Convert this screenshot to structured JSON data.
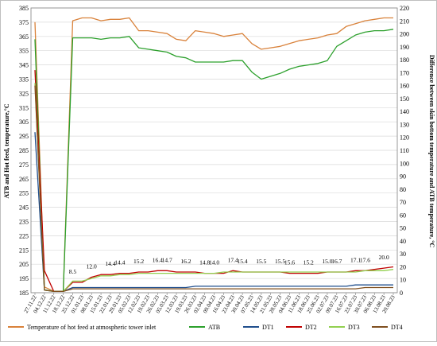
{
  "chart_data": {
    "type": "line",
    "title": "",
    "ylabel_left": "ATB and Hot feed, temperature,°C",
    "ylabel_right": "Difference between skin bottom temperature and ATB temperature, °C",
    "ylim_left": [
      185,
      385
    ],
    "ylim_right": [
      0,
      220
    ],
    "yticks_left": [
      "185",
      "195",
      "205",
      "215",
      "225",
      "235",
      "245",
      "255",
      "265",
      "275",
      "285",
      "295",
      "305",
      "315",
      "325",
      "335",
      "345",
      "355",
      "365",
      "375",
      "385"
    ],
    "yticks_right": [
      "0",
      "10",
      "20",
      "30",
      "40",
      "50",
      "60",
      "70",
      "80",
      "90",
      "100",
      "110",
      "120",
      "130",
      "140",
      "150",
      "160",
      "170",
      "180",
      "190",
      "200",
      "210",
      "220"
    ],
    "categories": [
      "27.11.22",
      "04.12.22",
      "11.12.22",
      "18.12.22",
      "25.12.22",
      "01.01.23",
      "08.01.23",
      "15.01.23",
      "22.01.23",
      "29.01.23",
      "05.02.23",
      "12.02.23",
      "19.02.23",
      "26.02.23",
      "05.03.23",
      "12.03.23",
      "19.03.23",
      "26.03.23",
      "02.04.23",
      "09.04.23",
      "16.04.23",
      "23.04.23",
      "30.04.23",
      "07.05.23",
      "14.05.23",
      "21.05.23",
      "28.05.23",
      "04.06.23",
      "11.06.23",
      "18.06.23",
      "25.06.23",
      "02.07.23",
      "09.07.23",
      "16.07.23",
      "23.07.23",
      "30.07.23",
      "06.08.23",
      "13.08.23",
      "20.08.23"
    ],
    "annotations": [
      "8.5",
      "12.0",
      "14.4",
      "14.4",
      "15.2",
      "16.4",
      "14.7",
      "16.2",
      "14.8",
      "14.0",
      "17.4",
      "15.4",
      "15.5",
      "15.5",
      "15.6",
      "15.2",
      "15.0",
      "16.7",
      "17.1",
      "17.6",
      "20.0"
    ],
    "series": [
      {
        "name": "Temperature of hot feed at atmospheric tower inlet",
        "axis": "left",
        "color": "#d9823b",
        "values": [
          375,
          189,
          186,
          186,
          376,
          378,
          378,
          376,
          377,
          377,
          378,
          369,
          369,
          368,
          367,
          363,
          362,
          369,
          368,
          367,
          365,
          366,
          367,
          360,
          356,
          357,
          358,
          360,
          362,
          363,
          364,
          366,
          367,
          372,
          374,
          376,
          377,
          378,
          378
        ]
      },
      {
        "name": "ATB",
        "axis": "left",
        "color": "#2ca02c",
        "values": [
          363,
          187,
          186,
          186,
          364,
          364,
          364,
          363,
          364,
          364,
          365,
          357,
          356,
          355,
          354,
          351,
          350,
          347,
          347,
          347,
          347,
          348,
          348,
          340,
          335,
          337,
          339,
          342,
          344,
          345,
          346,
          348,
          358,
          362,
          366,
          368,
          369,
          369,
          370
        ]
      },
      {
        "name": "DT1",
        "axis": "right",
        "color": "#1f4e8c",
        "values": [
          124,
          2,
          1,
          1,
          4,
          4,
          4,
          4,
          4,
          4,
          4,
          4,
          4,
          4,
          4,
          4,
          4,
          5,
          5,
          5,
          5,
          5,
          5,
          5,
          5,
          5,
          5,
          5,
          5,
          5,
          5,
          5,
          5,
          5,
          6,
          6,
          6,
          6,
          6
        ]
      },
      {
        "name": "DT2",
        "axis": "right",
        "color": "#c00000",
        "values": [
          172,
          17,
          1,
          1,
          8,
          8,
          12,
          14,
          14,
          15,
          15,
          16,
          16,
          17,
          17,
          16,
          16,
          16,
          15,
          15,
          15,
          17,
          16,
          16,
          16,
          16,
          16,
          15,
          15,
          15,
          15,
          16,
          16,
          16,
          17,
          17,
          18,
          19,
          20
        ]
      },
      {
        "name": "DT3",
        "axis": "right",
        "color": "#92d050",
        "values": [
          162,
          2,
          1,
          1,
          9,
          9,
          11,
          13,
          13,
          14,
          14,
          15,
          15,
          15,
          15,
          15,
          15,
          15,
          15,
          15,
          16,
          16,
          16,
          16,
          16,
          16,
          16,
          16,
          16,
          16,
          16,
          16,
          16,
          16,
          16,
          17,
          17,
          17,
          18
        ]
      },
      {
        "name": "DT4",
        "axis": "right",
        "color": "#7f4f1f",
        "values": [
          160,
          2,
          1,
          1,
          3,
          3,
          3,
          3,
          3,
          3,
          3,
          3,
          3,
          3,
          3,
          3,
          3,
          3,
          3,
          3,
          3,
          3,
          3,
          3,
          3,
          3,
          3,
          3,
          3,
          3,
          3,
          3,
          3,
          3,
          3,
          4,
          4,
          4,
          4
        ]
      }
    ]
  }
}
